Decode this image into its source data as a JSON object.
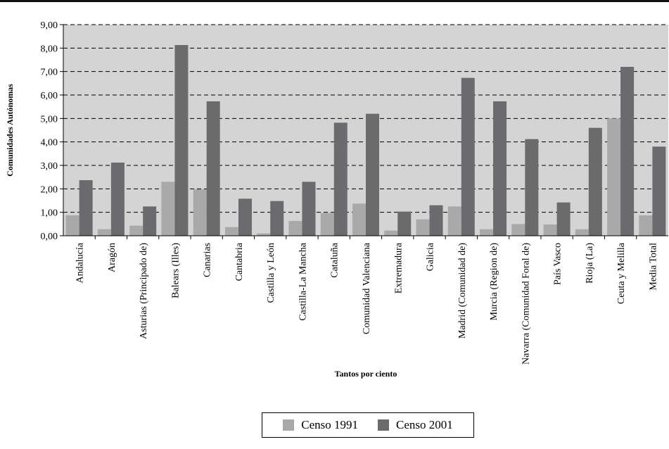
{
  "chart_data": {
    "type": "bar",
    "xlabel": "Tantos por ciento",
    "ylabel": "Comunidades Autónomas",
    "ylim": [
      0,
      9
    ],
    "yticks": [
      "0,00",
      "1,00",
      "2,00",
      "3,00",
      "4,00",
      "5,00",
      "6,00",
      "7,00",
      "8,00",
      "9,00"
    ],
    "grid": "horizontal dashed",
    "legend_position": "bottom-center",
    "categories": [
      "Andalucía",
      "Aragón",
      "Asturias (Principado de)",
      "Balears (Illes)",
      "Canarias",
      "Cantabria",
      "Castilla y León",
      "Castilla-La Mancha",
      "Cataluña",
      "Comunidad Valenciana",
      "Extremadura",
      "Galicia",
      "Madrid (Comunidad de)",
      "Murcia (Region de)",
      "Navarra (Comunidad Foral de)",
      "País Vasco",
      "Rioja (La)",
      "Ceuta y Melilla",
      "Media Total"
    ],
    "series": [
      {
        "name": "Censo 1991",
        "color": "#a9a9a9",
        "values": [
          0.87,
          0.28,
          0.43,
          2.3,
          1.98,
          0.37,
          0.1,
          0.63,
          0.97,
          1.37,
          0.22,
          0.7,
          1.25,
          0.28,
          0.5,
          0.48,
          0.28,
          5.0,
          0.87
        ]
      },
      {
        "name": "Censo 2001",
        "color": "#6b6b6d",
        "values": [
          2.37,
          3.12,
          1.25,
          8.13,
          5.73,
          1.58,
          1.48,
          2.3,
          4.82,
          5.2,
          1.03,
          1.3,
          6.73,
          5.73,
          4.12,
          1.42,
          4.6,
          7.2,
          3.8
        ]
      }
    ],
    "plot_background": "#d4d4d4"
  }
}
